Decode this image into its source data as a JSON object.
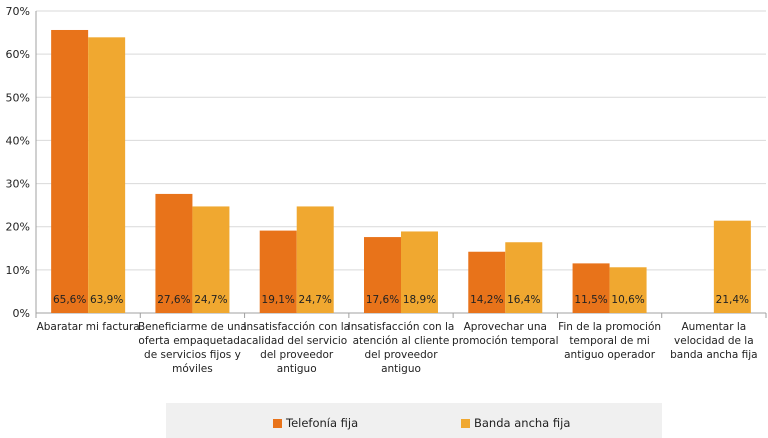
{
  "chart_data": {
    "type": "bar",
    "categories": [
      "Abaratar mi factura",
      "Beneficiarme de una oferta empaquetada de servicios fijos y móviles",
      "Insatisfacción con la calidad del servicio del proveedor antiguo",
      "Insatisfacción con la atención al cliente del proveedor antiguo",
      "Aprovechar una promoción temporal",
      "Fin de la promoción temporal de mi antiguo operador",
      "Aumentar la velocidad de la banda ancha fija"
    ],
    "category_lines": [
      [
        "Abaratar mi factura"
      ],
      [
        "Beneficiarme de una",
        "oferta empaquetada",
        "de servicios fijos y",
        "móviles"
      ],
      [
        "Insatisfacción con la",
        "calidad del servicio",
        "del proveedor",
        "antiguo"
      ],
      [
        "Insatisfacción con la",
        "atención al cliente",
        "del proveedor",
        "antiguo"
      ],
      [
        "Aprovechar una",
        "promoción temporal"
      ],
      [
        "Fin de la promoción",
        "temporal de mi",
        "antiguo operador"
      ],
      [
        "Aumentar la",
        "velocidad de la",
        "banda ancha fija"
      ]
    ],
    "series": [
      {
        "name": "Telefonía fija",
        "color": "#e8731a",
        "values": [
          65.6,
          27.6,
          19.1,
          17.6,
          14.2,
          11.5,
          null
        ],
        "labels": [
          "65,6%",
          "27,6%",
          "19,1%",
          "17,6%",
          "14,2%",
          "11,5%",
          ""
        ]
      },
      {
        "name": "Banda ancha fija",
        "color": "#f0a830",
        "values": [
          63.9,
          24.7,
          24.7,
          18.9,
          16.4,
          10.6,
          21.4
        ],
        "labels": [
          "63,9%",
          "24,7%",
          "24,7%",
          "18,9%",
          "16,4%",
          "10,6%",
          "21,4%"
        ]
      }
    ],
    "ylim": [
      0,
      70
    ],
    "yticks": [
      0,
      10,
      20,
      30,
      40,
      50,
      60,
      70
    ],
    "ytick_labels": [
      "0%",
      "10%",
      "20%",
      "30%",
      "40%",
      "50%",
      "60%",
      "70%"
    ],
    "grid": true,
    "legend": "bottom",
    "title": "",
    "xlabel": "",
    "ylabel": ""
  }
}
